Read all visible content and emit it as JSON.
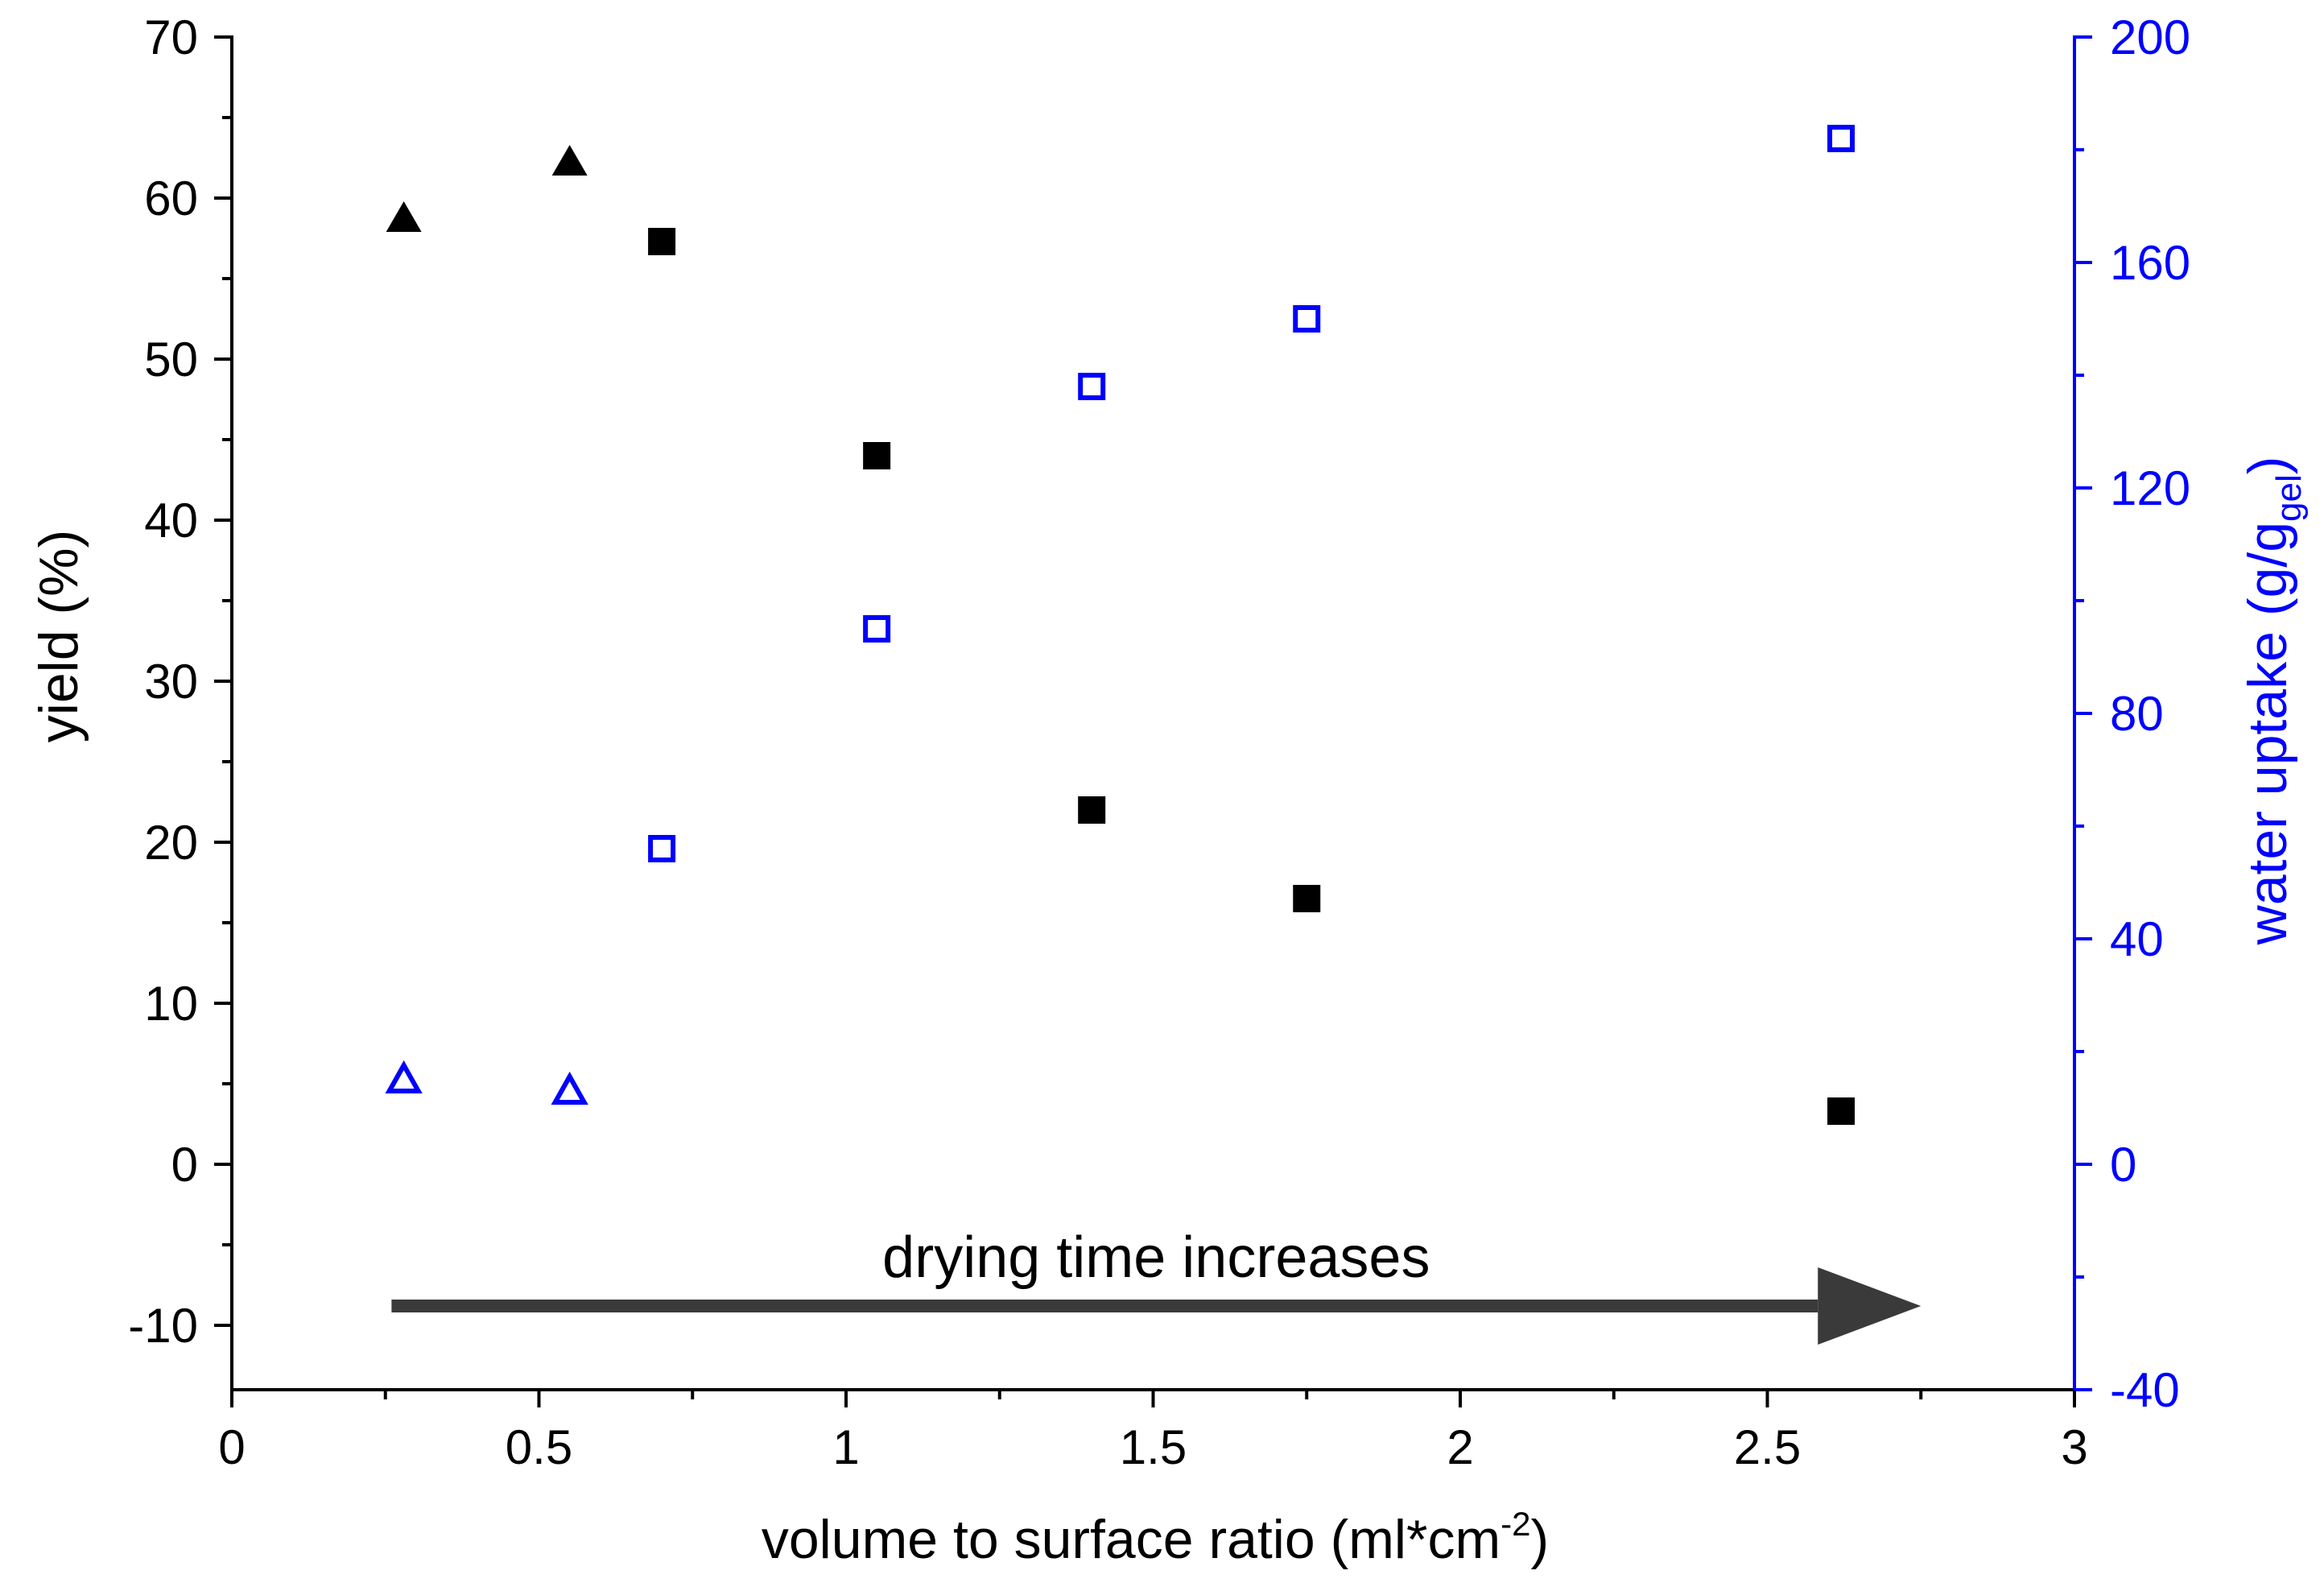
{
  "chart_data": {
    "type": "scatter",
    "xlabel": {
      "main": "volume to surface ratio (ml*cm",
      "sup": "-2",
      "end": ")"
    },
    "ylabel_left": "yield (%)",
    "ylabel_right": {
      "main": "water uptake (g/g",
      "sub": "gel",
      "end": ")"
    },
    "xlim": [
      0,
      3
    ],
    "ylim_left": [
      -14,
      70
    ],
    "ylim_right": [
      -40,
      200
    ],
    "x_ticks": [
      0,
      0.5,
      1,
      1.5,
      2,
      2.5,
      3
    ],
    "x_tick_labels": [
      "0",
      "0.5",
      "1",
      "1.5",
      "2",
      "2.5",
      "3"
    ],
    "y_left_ticks": [
      -10,
      0,
      10,
      20,
      30,
      40,
      50,
      60,
      70
    ],
    "y_left_tick_labels": [
      "-10",
      "0",
      "10",
      "20",
      "30",
      "40",
      "50",
      "60",
      "70"
    ],
    "y_right_ticks": [
      -40,
      0,
      40,
      80,
      120,
      160,
      200
    ],
    "y_right_tick_labels": [
      "-40",
      "0",
      "40",
      "80",
      "120",
      "160",
      "200"
    ],
    "colors": {
      "left": "#000000",
      "right": "#0000ff",
      "arrow": "#3a3a3a"
    },
    "series": [
      {
        "name": "yield (filled triangle)",
        "axis": "left",
        "marker": "triangle-filled",
        "color": "#000000",
        "x": [
          0.28,
          0.55
        ],
        "y": [
          58.7,
          62.2
        ]
      },
      {
        "name": "yield (filled square)",
        "axis": "left",
        "marker": "square-filled",
        "color": "#000000",
        "x": [
          0.7,
          1.05,
          1.4,
          1.75,
          2.62
        ],
        "y": [
          57.3,
          44.0,
          22.0,
          16.5,
          3.3
        ]
      },
      {
        "name": "water uptake (open triangle)",
        "axis": "right",
        "marker": "triangle-open",
        "color": "#0000ff",
        "x": [
          0.28,
          0.55
        ],
        "y": [
          15,
          13
        ]
      },
      {
        "name": "water uptake (open square)",
        "axis": "right",
        "marker": "square-open",
        "color": "#0000ff",
        "x": [
          0.7,
          1.05,
          1.4,
          1.75,
          2.62
        ],
        "y": [
          56,
          95,
          138,
          150,
          182
        ]
      }
    ],
    "annotation": {
      "text": "drying time increases",
      "arrow_from_x": 0.26,
      "arrow_to_x": 2.75,
      "arrow_y": -8.8,
      "text_y": -5.8
    }
  }
}
